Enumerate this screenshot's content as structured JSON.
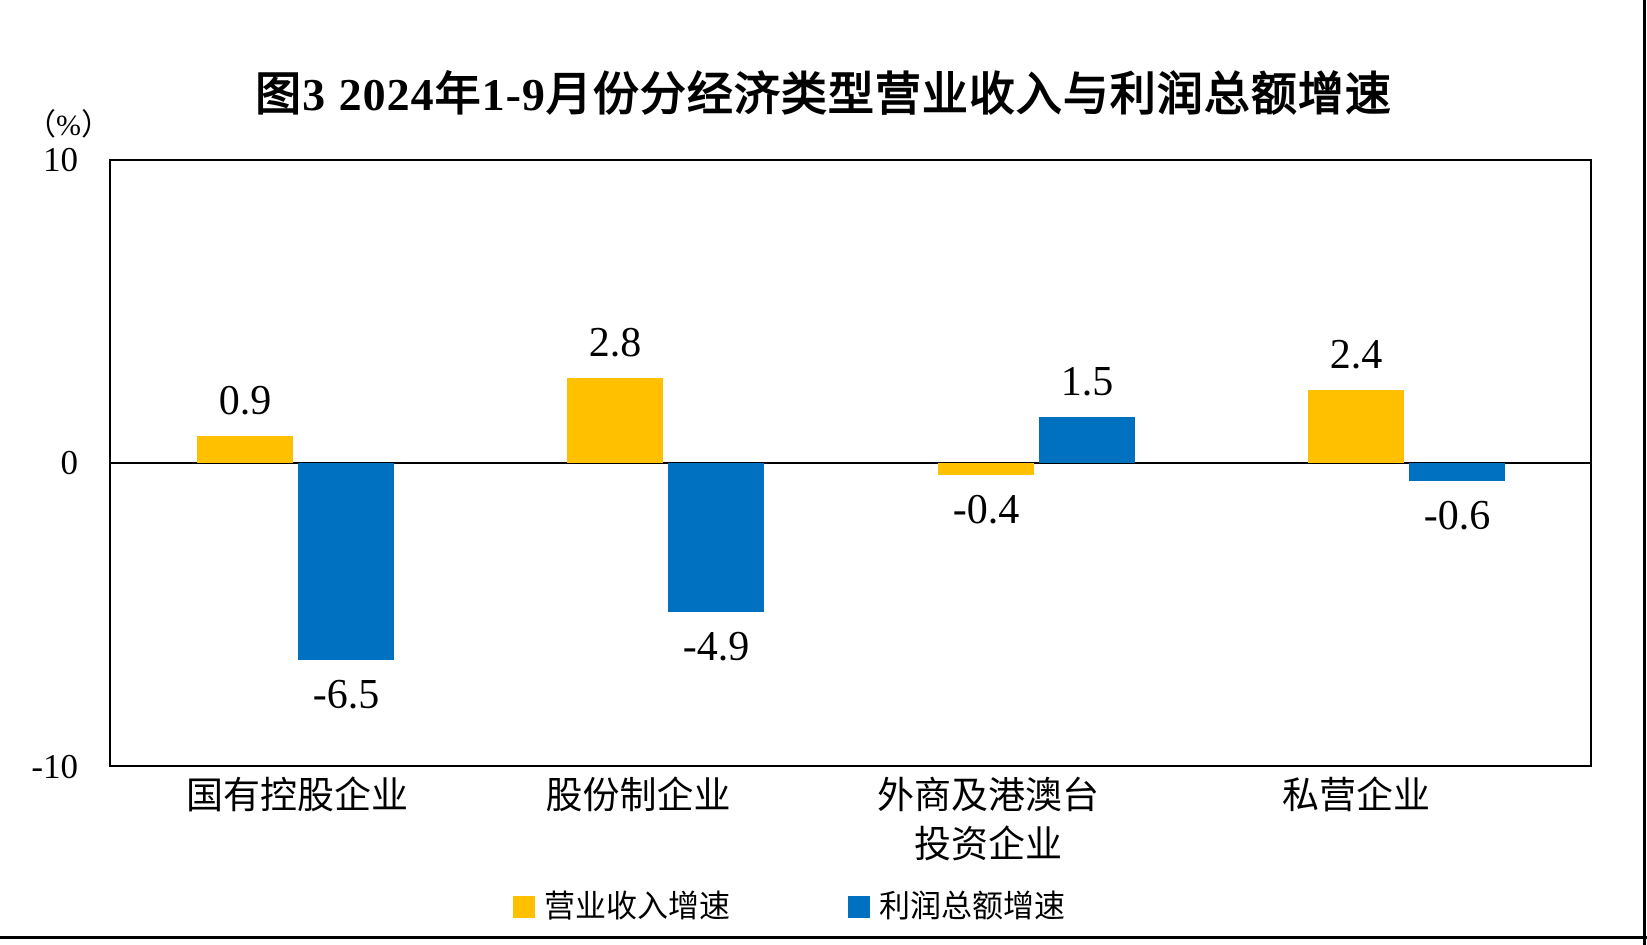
{
  "chart_data": {
    "type": "bar",
    "title": "图3 2024年1-9月份分经济类型营业收入与利润总额增速",
    "unit_label": "（%）",
    "categories": [
      "国有控股企业",
      "股份制企业",
      "外商及港澳台\n投资企业",
      "私营企业"
    ],
    "series": [
      {
        "name": "营业收入增速",
        "color": "#FFC000",
        "values": [
          0.9,
          2.8,
          -0.4,
          2.4
        ]
      },
      {
        "name": "利润总额增速",
        "color": "#0070C0",
        "values": [
          -6.5,
          -4.9,
          1.5,
          -0.6
        ]
      }
    ],
    "value_labels": [
      [
        "0.9",
        "2.8",
        "-0.4",
        "2.4"
      ],
      [
        "-6.5",
        "-4.9",
        "1.5",
        "-0.6"
      ]
    ],
    "ylim": [
      -10,
      10
    ],
    "yticks": [
      10,
      0,
      -10
    ],
    "grid": false,
    "legend_position": "bottom",
    "axis_color": "#000000",
    "background_color": "#ffffff"
  }
}
